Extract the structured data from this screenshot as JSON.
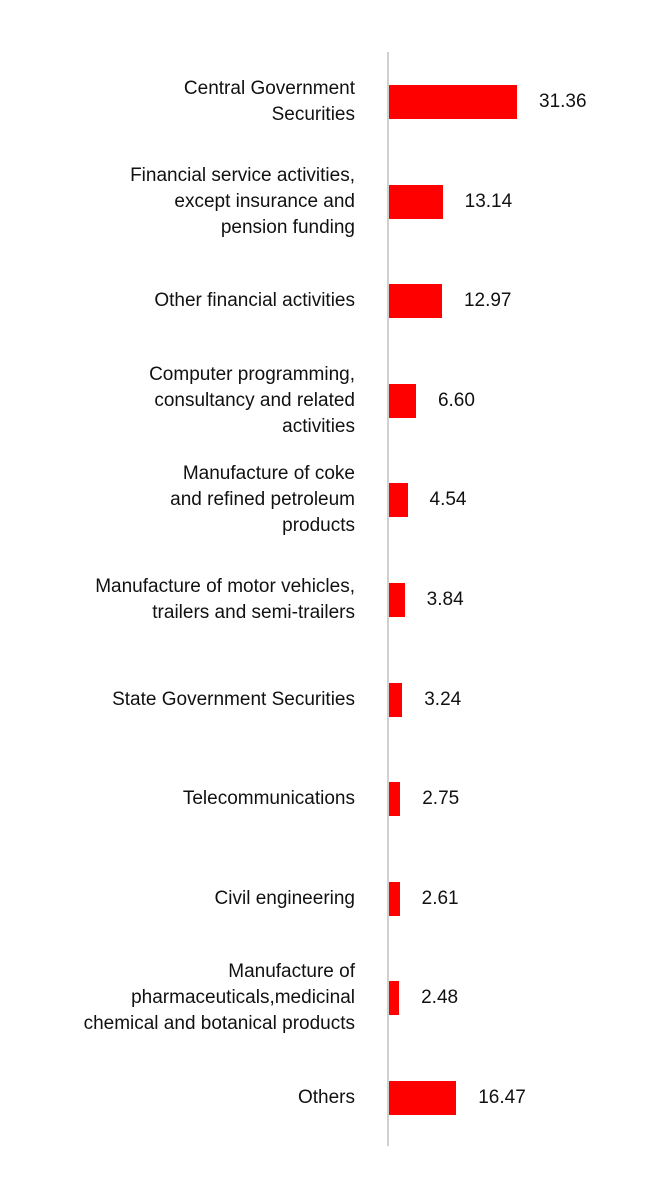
{
  "chart_data": {
    "type": "bar",
    "orientation": "horizontal",
    "categories": [
      "Central Government\nSecurities",
      "Financial service activities,\nexcept insurance and\npension funding",
      "Other financial activities",
      "Computer programming,\nconsultancy and related\nactivities",
      "Manufacture of coke\nand refined petroleum\nproducts",
      "Manufacture of motor vehicles,\ntrailers and semi-trailers",
      "State Government Securities",
      "Telecommunications",
      "Civil engineering",
      "Manufacture of\npharmaceuticals,medicinal\nchemical and botanical products",
      "Others"
    ],
    "values": [
      31.36,
      13.14,
      12.97,
      6.6,
      4.54,
      3.84,
      3.24,
      2.75,
      2.61,
      2.48,
      16.47
    ],
    "value_labels": [
      "31.36",
      "13.14",
      "12.97",
      "6.60",
      "4.54",
      "3.84",
      "3.24",
      "2.75",
      "2.61",
      "2.48",
      "16.47"
    ],
    "bar_color": "#ff0000",
    "axis_color": "#d0d0d0",
    "title": "",
    "xlabel": "",
    "ylabel": "",
    "xlim": [
      0,
      31.36
    ],
    "grid": false,
    "legend": "none"
  }
}
